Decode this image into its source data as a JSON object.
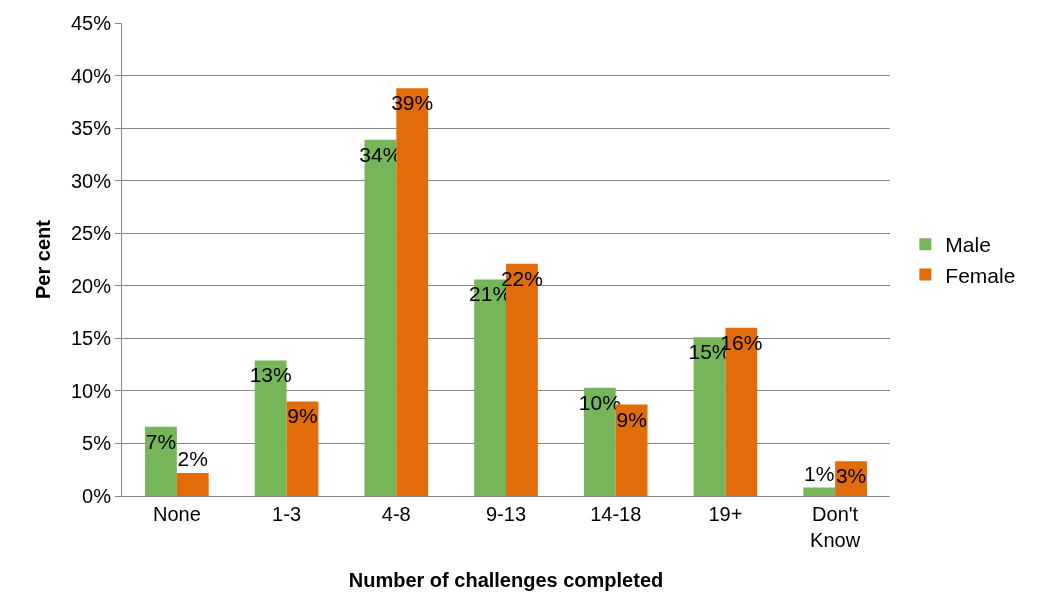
{
  "chart_data": {
    "type": "bar",
    "xlabel": "Number of challenges completed",
    "ylabel": "Per cent",
    "categories": [
      "None",
      "1-3",
      "4-8",
      "9-13",
      "14-18",
      "19+",
      "Don't Know"
    ],
    "series": [
      {
        "name": "Male",
        "color": "#77b55a",
        "values": [
          6.6,
          12.9,
          33.9,
          20.6,
          10.3,
          15.1,
          0.8
        ],
        "value_labels": [
          "7%",
          "13%",
          "34%",
          "21%",
          "10%",
          "15%",
          "1%"
        ]
      },
      {
        "name": "Female",
        "color": "#e36c0a",
        "values": [
          2.2,
          9.0,
          38.8,
          22.1,
          8.7,
          16.0,
          3.3
        ],
        "value_labels": [
          "2%",
          "9%",
          "39%",
          "22%",
          "9%",
          "16%",
          "3%"
        ]
      }
    ],
    "ylim": [
      0,
      45
    ],
    "yticks": [
      {
        "value": 0,
        "label": "0%"
      },
      {
        "value": 5,
        "label": "5%"
      },
      {
        "value": 10,
        "label": "10%"
      },
      {
        "value": 15,
        "label": "15%"
      },
      {
        "value": 20,
        "label": "20%"
      },
      {
        "value": 25,
        "label": "25%"
      },
      {
        "value": 30,
        "label": "30%"
      },
      {
        "value": 35,
        "label": "35%"
      },
      {
        "value": 40,
        "label": "40%"
      },
      {
        "value": 45,
        "label": "45%"
      }
    ],
    "grid": "y",
    "legend": "right"
  }
}
